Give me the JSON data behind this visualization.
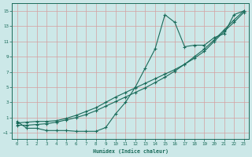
{
  "xlabel": "Humidex (Indice chaleur)",
  "bg_color": "#cce8e8",
  "grid_color": "#d4a0a0",
  "line_color": "#1a6b5a",
  "xlim": [
    -0.5,
    23.5
  ],
  "ylim": [
    -1.8,
    16.0
  ],
  "xticks": [
    0,
    1,
    2,
    3,
    4,
    5,
    6,
    7,
    8,
    9,
    10,
    11,
    12,
    13,
    14,
    15,
    16,
    17,
    18,
    19,
    20,
    21,
    22,
    23
  ],
  "yticks": [
    -1,
    1,
    3,
    5,
    7,
    9,
    11,
    13,
    15
  ],
  "line1_x": [
    0,
    1,
    2,
    3,
    4,
    5,
    6,
    7,
    8,
    9,
    10,
    11,
    12,
    13,
    14,
    15,
    16,
    17,
    18,
    19,
    20,
    21,
    22,
    23
  ],
  "line1_y": [
    0.5,
    -0.4,
    -0.4,
    -0.7,
    -0.7,
    -0.7,
    -0.8,
    -0.8,
    -0.8,
    -0.3,
    1.5,
    3.0,
    5.0,
    7.5,
    10.0,
    14.5,
    13.5,
    10.3,
    10.5,
    10.5,
    11.5,
    12.0,
    14.5,
    15.0
  ],
  "line2_x": [
    0,
    1,
    2,
    3,
    4,
    5,
    6,
    7,
    8,
    9,
    10,
    11,
    12,
    13,
    14,
    15,
    16,
    17,
    18,
    19,
    20,
    21,
    22,
    23
  ],
  "line2_y": [
    0.3,
    0.4,
    0.5,
    0.5,
    0.6,
    0.9,
    1.3,
    1.8,
    2.3,
    3.0,
    3.7,
    4.3,
    4.9,
    5.5,
    6.1,
    6.7,
    7.3,
    8.0,
    8.8,
    9.7,
    11.0,
    12.3,
    13.5,
    14.8
  ],
  "line3_x": [
    0,
    1,
    2,
    3,
    4,
    5,
    6,
    7,
    8,
    9,
    10,
    11,
    12,
    13,
    14,
    15,
    16,
    17,
    18,
    19,
    20,
    21,
    22,
    23
  ],
  "line3_y": [
    0.0,
    0.0,
    0.1,
    0.2,
    0.4,
    0.7,
    1.0,
    1.4,
    1.9,
    2.5,
    3.1,
    3.7,
    4.3,
    4.9,
    5.6,
    6.3,
    7.1,
    8.0,
    9.0,
    10.0,
    11.2,
    12.5,
    13.8,
    15.0
  ]
}
